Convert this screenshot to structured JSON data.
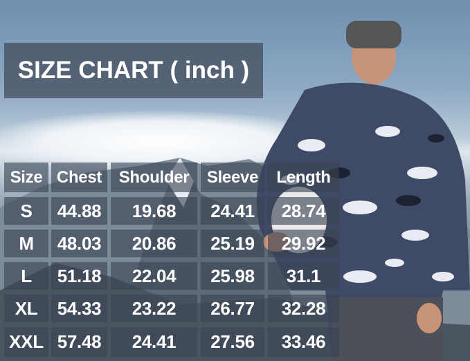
{
  "title": "SIZE CHART ( inch )",
  "table": {
    "headers": [
      "Size",
      "Chest",
      "Shoulder",
      "Sleeve",
      "Length"
    ],
    "rows": [
      [
        "S",
        "44.88",
        "19.68",
        "24.41",
        "28.74"
      ],
      [
        "M",
        "48.03",
        "20.86",
        "25.19",
        "29.92"
      ],
      [
        "L",
        "51.18",
        "22.04",
        "25.98",
        "31.1"
      ],
      [
        "XL",
        "54.33",
        "23.22",
        "26.77",
        "32.28"
      ],
      [
        "XXL",
        "57.48",
        "24.41",
        "27.56",
        "33.46"
      ]
    ]
  }
}
